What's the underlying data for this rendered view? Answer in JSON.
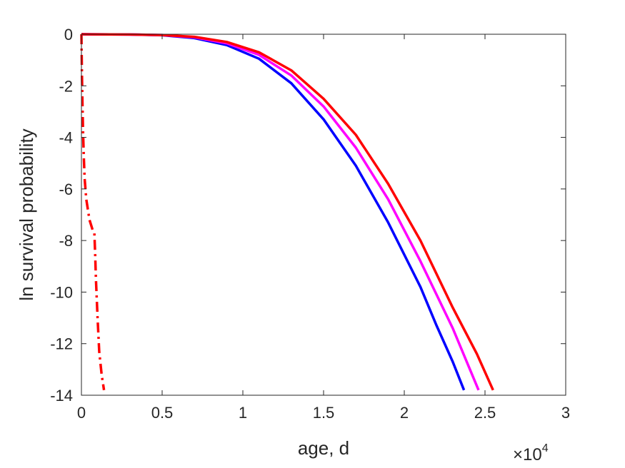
{
  "chart_data": {
    "type": "line",
    "xlabel": "age, d",
    "ylabel": "ln survival probability",
    "x_multiplier_base": "×10",
    "x_multiplier_exponent": "4",
    "xlim": [
      0,
      30000
    ],
    "ylim": [
      -14,
      0
    ],
    "xticks": [
      0,
      5000,
      10000,
      15000,
      20000,
      25000,
      30000
    ],
    "xtick_labels": [
      "0",
      "0.5",
      "1",
      "1.5",
      "2",
      "2.5",
      "3"
    ],
    "yticks": [
      0,
      -2,
      -4,
      -6,
      -8,
      -10,
      -12,
      -14
    ],
    "ytick_labels": [
      "0",
      "-2",
      "-4",
      "-6",
      "-8",
      "-10",
      "-12",
      "-14"
    ],
    "grid": false,
    "legend": "none",
    "series": [
      {
        "color": "#0000ff",
        "style": "solid",
        "x": [
          0,
          3000,
          5000,
          7000,
          9000,
          11000,
          13000,
          15000,
          17000,
          19000,
          21000,
          22000,
          23000,
          23700
        ],
        "y": [
          0,
          -0.01,
          -0.04,
          -0.15,
          -0.42,
          -0.95,
          -1.9,
          -3.3,
          -5.1,
          -7.3,
          -9.8,
          -11.3,
          -12.7,
          -13.8
        ]
      },
      {
        "color": "#ff00ff",
        "style": "solid",
        "x": [
          0,
          3000,
          5000,
          7000,
          9000,
          11000,
          13000,
          15000,
          17000,
          19000,
          21000,
          23000,
          24000,
          24600
        ],
        "y": [
          0,
          -0.01,
          -0.03,
          -0.12,
          -0.35,
          -0.8,
          -1.6,
          -2.8,
          -4.4,
          -6.4,
          -8.8,
          -11.4,
          -12.9,
          -13.8
        ]
      },
      {
        "color": "#ff0000",
        "style": "solid",
        "x": [
          0,
          3000,
          5000,
          7000,
          9000,
          11000,
          13000,
          15000,
          17000,
          19000,
          21000,
          23000,
          24500,
          25500
        ],
        "y": [
          0,
          -0.01,
          -0.03,
          -0.1,
          -0.3,
          -0.7,
          -1.4,
          -2.5,
          -3.9,
          -5.8,
          -8.0,
          -10.6,
          -12.4,
          -13.8
        ]
      },
      {
        "color": "#ff0000",
        "style": "dashdot",
        "x": [
          0,
          30,
          60,
          100,
          150,
          200,
          300,
          500,
          700,
          800,
          850,
          900,
          1000,
          1100,
          1250,
          1400
        ],
        "y": [
          0,
          -1.5,
          -2.6,
          -3.8,
          -4.8,
          -5.6,
          -6.4,
          -7.2,
          -7.6,
          -7.7,
          -8.5,
          -9.5,
          -11.0,
          -12.3,
          -13.2,
          -13.8
        ]
      }
    ]
  }
}
